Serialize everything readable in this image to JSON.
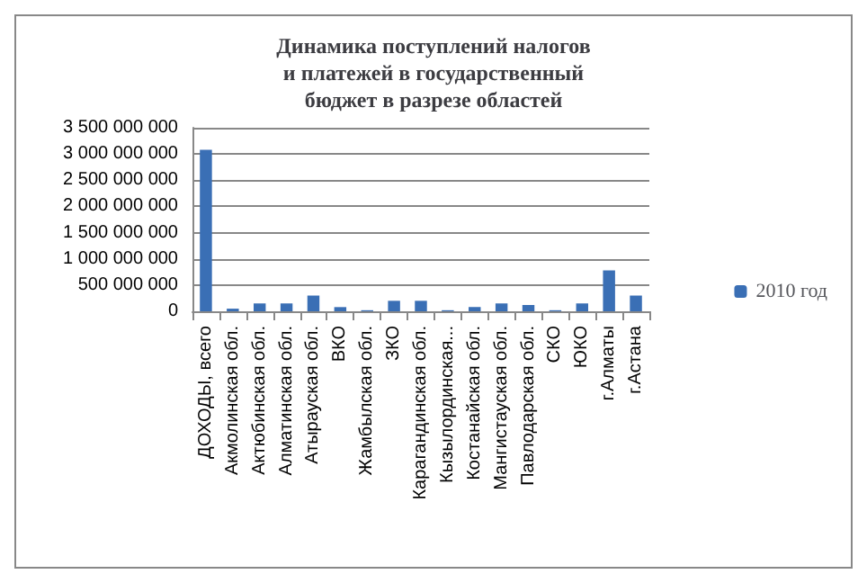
{
  "chart_data": {
    "type": "bar",
    "title": "Динамика поступлений налогов и платежей в государственный бюджет в разрезе областей",
    "categories": [
      "ДОХОДЫ, всего",
      "Акмолинская обл.",
      "Актюбинская обл.",
      "Алматинская обл.",
      "Атырауская обл.",
      "ВКО",
      "Жамбылская обл.",
      "ЗКО",
      "Карагандинская обл.",
      "Кызылординская...",
      "Костанайская обл.",
      "Мангистауская обл.",
      "Павлодарская обл.",
      "СКО",
      "ЮКО",
      "г.Алматы",
      "г.Астана"
    ],
    "series": [
      {
        "name": "2010 год",
        "color": "#3a6fb5",
        "values": [
          3080000000,
          50000000,
          150000000,
          150000000,
          300000000,
          80000000,
          20000000,
          200000000,
          200000000,
          20000000,
          80000000,
          150000000,
          120000000,
          20000000,
          150000000,
          780000000,
          300000000
        ]
      }
    ],
    "ylim": [
      0,
      3500000000
    ],
    "yticks": [
      {
        "value": 0,
        "label": "0"
      },
      {
        "value": 500000000,
        "label": "500 000 000"
      },
      {
        "value": 1000000000,
        "label": "1 000 000 000"
      },
      {
        "value": 1500000000,
        "label": "1 500 000 000"
      },
      {
        "value": 2000000000,
        "label": "2 000 000 000"
      },
      {
        "value": 2500000000,
        "label": "2 500 000 000"
      },
      {
        "value": 3000000000,
        "label": "3 000 000 000"
      },
      {
        "value": 3500000000,
        "label": "3 500 000 000"
      }
    ],
    "grid": "y",
    "legend": "right"
  }
}
